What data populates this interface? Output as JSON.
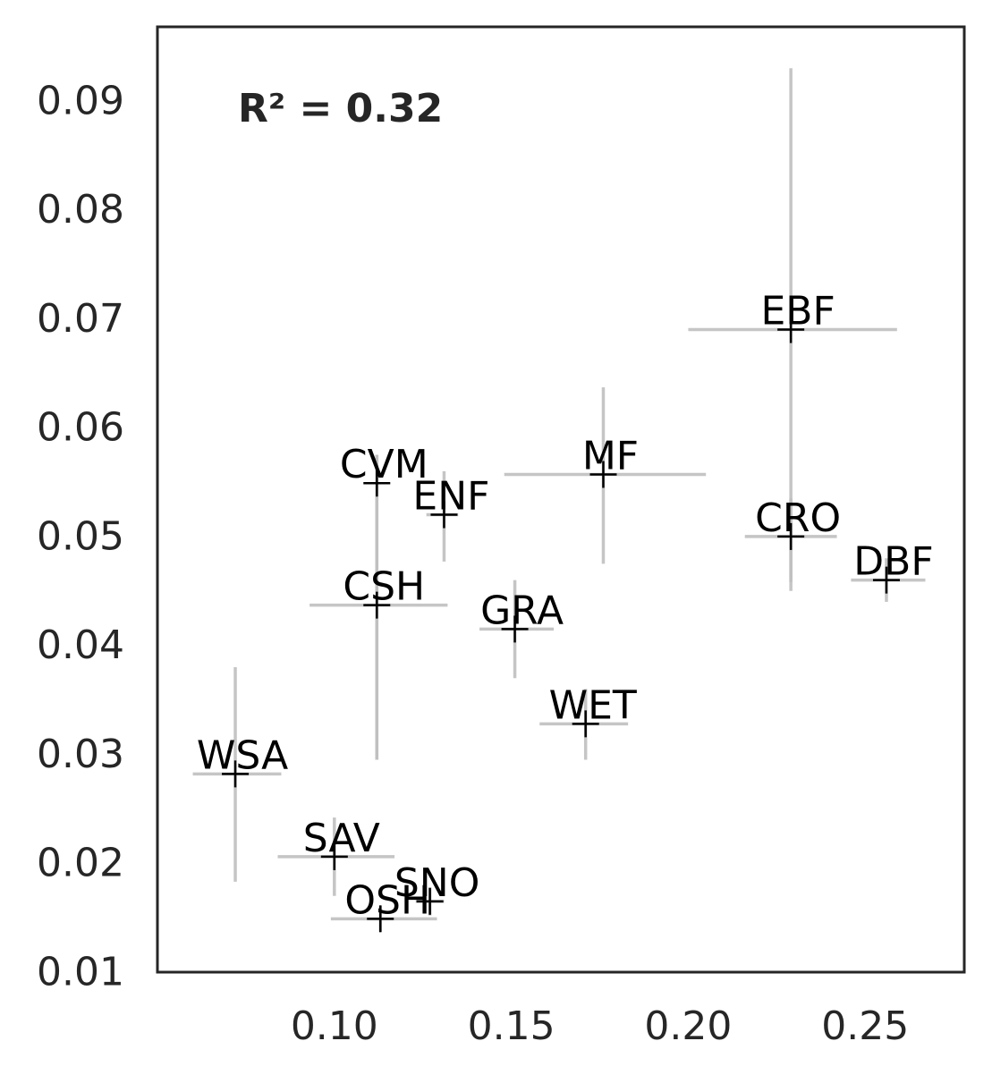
{
  "chart_data": {
    "type": "scatter",
    "title": "",
    "xlabel": "",
    "ylabel": "",
    "xlim": [
      0.05,
      0.278
    ],
    "ylim": [
      0.01,
      0.0968
    ],
    "x_ticks": [
      {
        "value": 0.1,
        "label": "0.10"
      },
      {
        "value": 0.15,
        "label": "0.15"
      },
      {
        "value": 0.2,
        "label": "0.20"
      },
      {
        "value": 0.25,
        "label": "0.25"
      }
    ],
    "y_ticks": [
      {
        "value": 0.01,
        "label": "0.01"
      },
      {
        "value": 0.02,
        "label": "0.02"
      },
      {
        "value": 0.03,
        "label": "0.03"
      },
      {
        "value": 0.04,
        "label": "0.04"
      },
      {
        "value": 0.05,
        "label": "0.05"
      },
      {
        "value": 0.06,
        "label": "0.06"
      },
      {
        "value": 0.07,
        "label": "0.07"
      },
      {
        "value": 0.08,
        "label": "0.08"
      },
      {
        "value": 0.09,
        "label": "0.09"
      }
    ],
    "grid": false,
    "annotation": "R² = 0.32",
    "colors": {
      "marker": "#000000",
      "error_bar": "#bfbfbf",
      "axes": "#262626"
    },
    "points": [
      {
        "label": "EBF",
        "x": 0.229,
        "y": 0.069,
        "xerr": [
          0.2,
          0.259
        ],
        "yerr": [
          0.045,
          0.093
        ]
      },
      {
        "label": "MF",
        "x": 0.176,
        "y": 0.0557,
        "xerr": [
          0.148,
          0.205
        ],
        "yerr": [
          0.0475,
          0.0637
        ]
      },
      {
        "label": "CVM",
        "x": 0.112,
        "y": 0.0549,
        "xerr": [
          0.112,
          0.112
        ],
        "yerr": [
          0.0295,
          0.0575
        ]
      },
      {
        "label": "ENF",
        "x": 0.131,
        "y": 0.052,
        "xerr": [
          0.126,
          0.135
        ],
        "yerr": [
          0.0477,
          0.056
        ]
      },
      {
        "label": "CRO",
        "x": 0.229,
        "y": 0.05,
        "xerr": [
          0.216,
          0.242
        ],
        "yerr": [
          0.0458,
          0.0535
        ]
      },
      {
        "label": "DBF",
        "x": 0.256,
        "y": 0.046,
        "xerr": [
          0.246,
          0.267
        ],
        "yerr": [
          0.044,
          0.048
        ]
      },
      {
        "label": "CSH",
        "x": 0.112,
        "y": 0.0437,
        "xerr": [
          0.093,
          0.132
        ],
        "yerr": [
          0.0295,
          0.0575
        ]
      },
      {
        "label": "GRA",
        "x": 0.151,
        "y": 0.0415,
        "xerr": [
          0.141,
          0.162
        ],
        "yerr": [
          0.037,
          0.046
        ]
      },
      {
        "label": "WET",
        "x": 0.171,
        "y": 0.0328,
        "xerr": [
          0.158,
          0.183
        ],
        "yerr": [
          0.0295,
          0.036
        ]
      },
      {
        "label": "WSA",
        "x": 0.072,
        "y": 0.0282,
        "xerr": [
          0.06,
          0.085
        ],
        "yerr": [
          0.0183,
          0.038
        ]
      },
      {
        "label": "SAV",
        "x": 0.1,
        "y": 0.0206,
        "xerr": [
          0.084,
          0.117
        ],
        "yerr": [
          0.017,
          0.0242
        ]
      },
      {
        "label": "SNO",
        "x": 0.127,
        "y": 0.0165,
        "xerr": [
          0.123,
          0.131
        ],
        "yerr": [
          0.0152,
          0.0178
        ]
      },
      {
        "label": "OSH",
        "x": 0.113,
        "y": 0.0149,
        "xerr": [
          0.099,
          0.129
        ],
        "yerr": [
          0.0137,
          0.0161
        ]
      }
    ]
  }
}
